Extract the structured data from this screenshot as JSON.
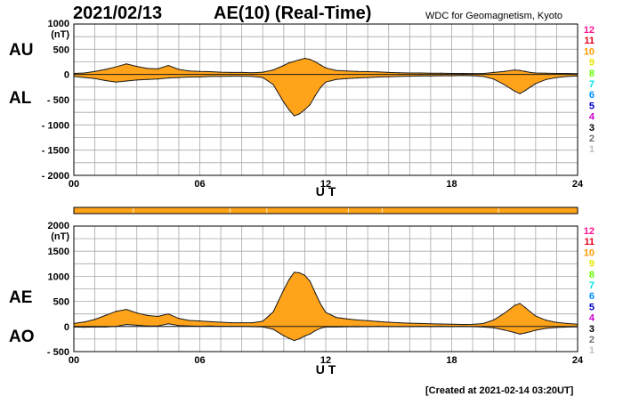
{
  "header": {
    "date": "2021/02/13",
    "title": "AE(10) (Real-Time)",
    "source": "WDC for Geomagnetism, Kyoto"
  },
  "footer": {
    "created": "[Created at 2021-02-14 03:20UT]"
  },
  "colors": {
    "fill": "#ffa31a",
    "line": "#1a1a1a",
    "grid": "#a8a8a8",
    "strip": "#ffa31a"
  },
  "station_legend": [
    {
      "label": "12",
      "color": "#ff1493"
    },
    {
      "label": "11",
      "color": "#e8001c"
    },
    {
      "label": "10",
      "color": "#ff9a00"
    },
    {
      "label": "9",
      "color": "#e6e600"
    },
    {
      "label": "8",
      "color": "#66ff00"
    },
    {
      "label": "7",
      "color": "#00e5e5"
    },
    {
      "label": "6",
      "color": "#0090ff"
    },
    {
      "label": "5",
      "color": "#0000cc"
    },
    {
      "label": "4",
      "color": "#cc00cc"
    },
    {
      "label": "3",
      "color": "#000000"
    },
    {
      "label": "2",
      "color": "#707070"
    },
    {
      "label": "1",
      "color": "#c0c0c0"
    }
  ],
  "chart_data": [
    {
      "type": "area",
      "name": "AU/AL panel",
      "ylabel_unit": "(nT)",
      "ylim": [
        -2000,
        1000
      ],
      "yticks": [
        1000,
        500,
        0,
        -500,
        -1000,
        -1500,
        -2000
      ],
      "ytick_labels": [
        "1000",
        "500",
        "0",
        "- 500",
        "- 1000",
        "- 1500",
        "- 2000"
      ],
      "xlim": [
        0,
        24
      ],
      "xticks": [
        0,
        6,
        12,
        18,
        24
      ],
      "xtick_labels": [
        "00",
        "06",
        "12",
        "18",
        "24"
      ],
      "xlabel": "U T",
      "upper_label": "AU",
      "lower_label": "AL",
      "grid": true,
      "x": [
        0,
        0.5,
        1,
        1.5,
        2,
        2.5,
        3,
        3.5,
        4,
        4.5,
        5,
        5.5,
        6,
        6.5,
        7,
        7.5,
        8,
        8.5,
        9,
        9.5,
        10,
        10.25,
        10.5,
        10.75,
        11,
        11.25,
        11.5,
        11.75,
        12,
        12.5,
        13,
        13.5,
        14,
        14.5,
        15,
        15.5,
        16,
        16.5,
        17,
        17.5,
        18,
        18.5,
        19,
        19.5,
        20,
        20.5,
        21,
        21.25,
        21.5,
        21.75,
        22,
        22.5,
        23,
        23.5,
        24
      ],
      "series": [
        {
          "name": "AU",
          "values": [
            20,
            30,
            60,
            100,
            150,
            210,
            160,
            120,
            110,
            180,
            100,
            70,
            60,
            55,
            45,
            40,
            40,
            35,
            45,
            90,
            180,
            230,
            260,
            290,
            320,
            300,
            250,
            190,
            130,
            80,
            70,
            60,
            55,
            50,
            40,
            35,
            30,
            30,
            25,
            25,
            20,
            20,
            18,
            18,
            40,
            60,
            90,
            80,
            60,
            40,
            30,
            25,
            20,
            20,
            15
          ]
        },
        {
          "name": "AL",
          "values": [
            -40,
            -60,
            -80,
            -120,
            -150,
            -130,
            -110,
            -100,
            -90,
            -70,
            -60,
            -50,
            -50,
            -40,
            -40,
            -35,
            -35,
            -40,
            -60,
            -200,
            -550,
            -700,
            -820,
            -780,
            -700,
            -600,
            -420,
            -260,
            -150,
            -100,
            -80,
            -70,
            -60,
            -50,
            -45,
            -40,
            -35,
            -30,
            -30,
            -25,
            -25,
            -20,
            -25,
            -40,
            -90,
            -200,
            -330,
            -380,
            -320,
            -250,
            -180,
            -100,
            -60,
            -40,
            -30
          ]
        }
      ]
    },
    {
      "type": "area",
      "name": "AE/AO panel",
      "ylabel_unit": "(nT)",
      "ylim": [
        -500,
        2000
      ],
      "yticks": [
        2000,
        1500,
        1000,
        500,
        0,
        -500
      ],
      "ytick_labels": [
        "2000",
        "1500",
        "1000",
        "500",
        "0",
        "- 500"
      ],
      "xlim": [
        0,
        24
      ],
      "xticks": [
        0,
        6,
        12,
        18,
        24
      ],
      "xtick_labels": [
        "00",
        "06",
        "12",
        "18",
        "24"
      ],
      "xlabel": "U T",
      "upper_label": "AE",
      "lower_label": "AO",
      "grid": true,
      "x": [
        0,
        0.5,
        1,
        1.5,
        2,
        2.5,
        3,
        3.5,
        4,
        4.5,
        5,
        5.5,
        6,
        6.5,
        7,
        7.5,
        8,
        8.5,
        9,
        9.5,
        10,
        10.25,
        10.5,
        10.75,
        11,
        11.25,
        11.5,
        11.75,
        12,
        12.5,
        13,
        13.5,
        14,
        14.5,
        15,
        15.5,
        16,
        16.5,
        17,
        17.5,
        18,
        18.5,
        19,
        19.5,
        20,
        20.5,
        21,
        21.25,
        21.5,
        21.75,
        22,
        22.5,
        23,
        23.5,
        24
      ],
      "series": [
        {
          "name": "AE",
          "values": [
            60,
            90,
            140,
            220,
            300,
            340,
            270,
            220,
            200,
            250,
            160,
            120,
            110,
            95,
            85,
            75,
            75,
            75,
            105,
            290,
            730,
            930,
            1080,
            1070,
            1020,
            900,
            670,
            450,
            280,
            180,
            150,
            130,
            115,
            100,
            85,
            75,
            65,
            60,
            55,
            50,
            45,
            40,
            43,
            58,
            130,
            260,
            420,
            460,
            380,
            290,
            210,
            125,
            80,
            60,
            45
          ]
        },
        {
          "name": "AO",
          "values": [
            -10,
            -15,
            -10,
            -10,
            0,
            40,
            25,
            10,
            10,
            55,
            20,
            10,
            5,
            8,
            3,
            3,
            3,
            -3,
            -8,
            -55,
            -185,
            -235,
            -280,
            -245,
            -190,
            -150,
            -85,
            -35,
            -10,
            -10,
            -5,
            -5,
            -3,
            0,
            -3,
            -3,
            -3,
            0,
            -3,
            0,
            -3,
            0,
            -4,
            -11,
            -25,
            -70,
            -120,
            -150,
            -130,
            -105,
            -75,
            -38,
            -20,
            -10,
            -8
          ]
        }
      ]
    }
  ]
}
